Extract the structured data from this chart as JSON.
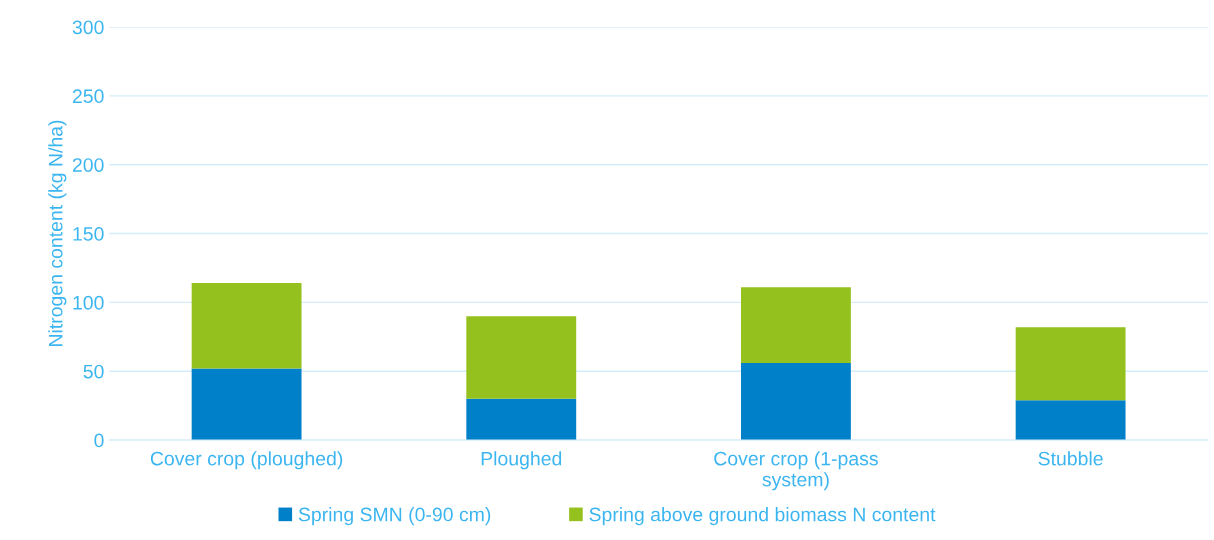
{
  "chart_data": {
    "type": "bar",
    "stacked": true,
    "ylabel": "Nitrogen content (kg N/ha)",
    "categories": [
      "Cover crop (ploughed)",
      "Ploughed",
      "Cover crop (1-pass\nsystem)",
      "Stubble"
    ],
    "series": [
      {
        "name": "Spring SMN (0-90 cm)",
        "color": "#0080c9",
        "values": [
          52,
          30,
          56,
          29
        ]
      },
      {
        "name": "Spring above ground biomass N content",
        "color": "#95c11f",
        "values": [
          62,
          60,
          55,
          53
        ]
      }
    ],
    "ylim": [
      0,
      300
    ],
    "yticks": [
      0,
      50,
      100,
      150,
      200,
      250,
      300
    ],
    "grid": "y",
    "legend": "bottom"
  }
}
